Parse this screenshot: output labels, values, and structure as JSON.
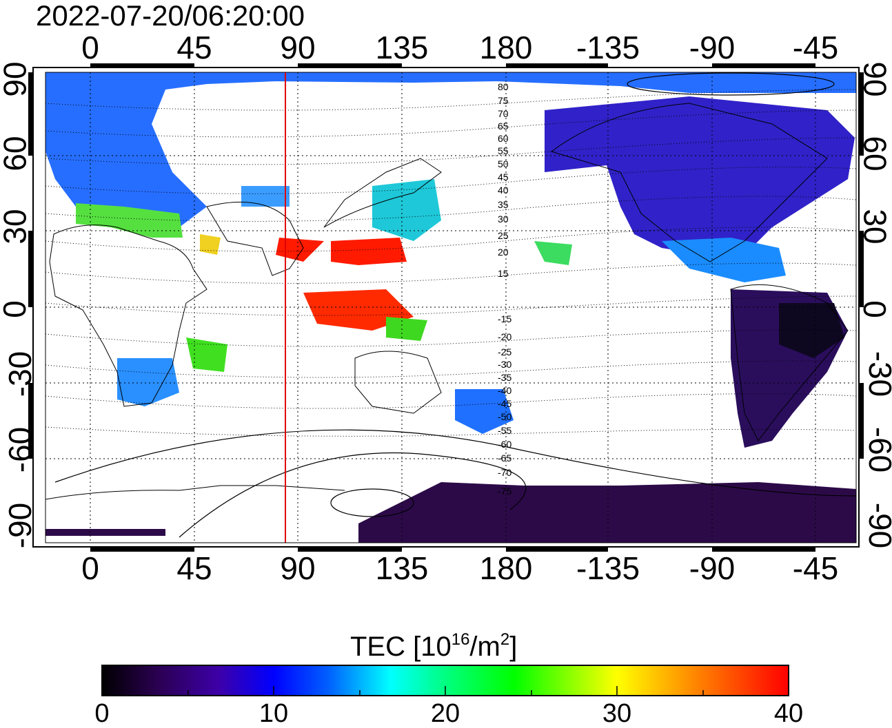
{
  "title": "2022-07-20/06:20:00",
  "x_ticks_top": [
    "0",
    "45",
    "90",
    "135",
    "180",
    "-135",
    "-90",
    "-45"
  ],
  "x_ticks_bottom": [
    "0",
    "45",
    "90",
    "135",
    "180",
    "-135",
    "-90",
    "-45"
  ],
  "y_ticks_left": [
    "90",
    "60",
    "30",
    "0",
    "-30",
    "-60",
    "-90"
  ],
  "y_ticks_right": [
    "90",
    "60",
    "30",
    "0",
    "-30",
    "-60",
    "-90"
  ],
  "colorbar": {
    "label_prefix": "TEC  [10",
    "label_exp1": "16",
    "label_mid": "/m",
    "label_exp2": "2",
    "label_suffix": "]",
    "ticks": [
      "0",
      "10",
      "20",
      "30",
      "40"
    ],
    "min": 0,
    "max": 40,
    "colors": [
      "#000000",
      "#2a0050",
      "#3d00a8",
      "#0000ff",
      "#0060ff",
      "#00ffff",
      "#00ff80",
      "#00ff00",
      "#ffff00",
      "#ff8000",
      "#ff0000"
    ]
  },
  "magnetic_latitude_labels": [
    "80",
    "75",
    "70",
    "65",
    "60",
    "55",
    "50",
    "45",
    "40",
    "35",
    "30",
    "25",
    "20",
    "15",
    "-15",
    "-20",
    "-25",
    "-30",
    "-35",
    "-40",
    "-45",
    "-50",
    "-55",
    "-60",
    "-65",
    "-70",
    "-75"
  ],
  "terminator_longitude": 86,
  "terminator_color": "#e00000"
}
